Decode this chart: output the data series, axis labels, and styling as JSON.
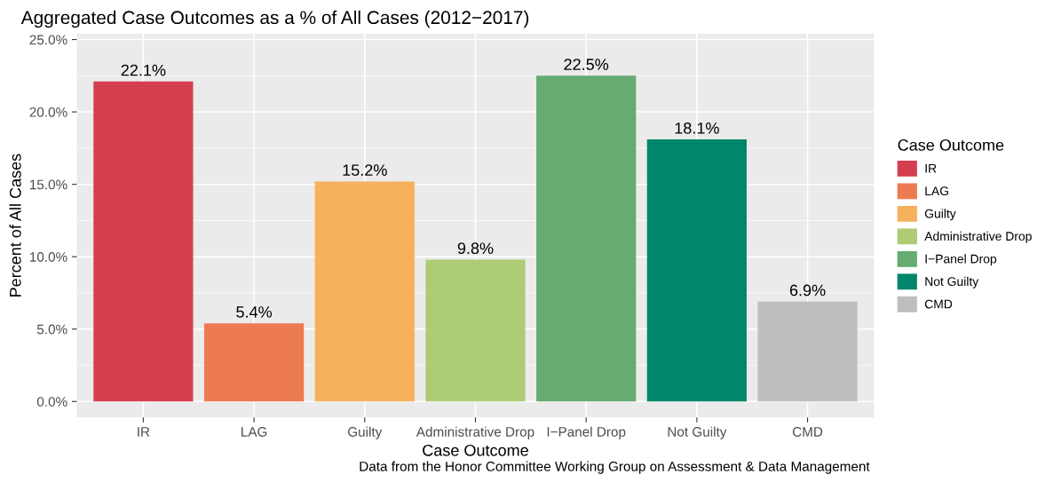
{
  "chart_data": {
    "type": "bar",
    "title": "Aggregated Case Outcomes as a % of All Cases (2012−2017)",
    "xlabel": "Case Outcome",
    "ylabel": "Percent of All Cases",
    "legend_title": "Case Outcome",
    "categories": [
      "IR",
      "LAG",
      "Guilty",
      "Administrative Drop",
      "I−Panel Drop",
      "Not Guilty",
      "CMD"
    ],
    "series": [
      {
        "name": "IR",
        "color": "#d53e4f",
        "values": [
          22.1,
          null,
          null,
          null,
          null,
          null,
          null
        ],
        "value_labels": [
          "22.1%",
          null,
          null,
          null,
          null,
          null,
          null
        ]
      },
      {
        "name": "LAG",
        "color": "#ec7b51",
        "values": [
          null,
          5.4,
          null,
          null,
          null,
          null,
          null
        ],
        "value_labels": [
          null,
          "5.4%",
          null,
          null,
          null,
          null,
          null
        ]
      },
      {
        "name": "Guilty",
        "color": "#f6b15d",
        "values": [
          null,
          null,
          15.2,
          null,
          null,
          null,
          null
        ],
        "value_labels": [
          null,
          null,
          "15.2%",
          null,
          null,
          null,
          null
        ]
      },
      {
        "name": "Administrative Drop",
        "color": "#aecb75",
        "values": [
          null,
          null,
          null,
          9.8,
          null,
          null,
          null
        ],
        "value_labels": [
          null,
          null,
          null,
          "9.8%",
          null,
          null,
          null
        ]
      },
      {
        "name": "I−Panel Drop",
        "color": "#65ab72",
        "values": [
          null,
          null,
          null,
          null,
          22.5,
          null,
          null
        ],
        "value_labels": [
          null,
          null,
          null,
          null,
          "22.5%",
          null,
          null
        ]
      },
      {
        "name": "Not Guilty",
        "color": "#00876b",
        "values": [
          null,
          null,
          null,
          null,
          null,
          18.1,
          null
        ],
        "value_labels": [
          null,
          null,
          null,
          null,
          null,
          "18.1%",
          null
        ]
      },
      {
        "name": "CMD",
        "color": "#bebebe",
        "values": [
          null,
          null,
          null,
          null,
          null,
          null,
          6.9
        ],
        "value_labels": [
          null,
          null,
          null,
          null,
          null,
          null,
          "6.9%"
        ]
      }
    ],
    "ylim": [
      -1.1,
      25.4
    ],
    "yticks": [
      {
        "value": 0,
        "label": "0.0%"
      },
      {
        "value": 5,
        "label": "5.0%"
      },
      {
        "value": 10,
        "label": "10.0%"
      },
      {
        "value": 15,
        "label": "15.0%"
      },
      {
        "value": 20,
        "label": "20.0%"
      },
      {
        "value": 25,
        "label": "25.0%"
      }
    ],
    "grid": true,
    "legend": "right",
    "annotations": [
      "Data from the Honor Committee Working Group on Assessment & Data Management"
    ]
  }
}
